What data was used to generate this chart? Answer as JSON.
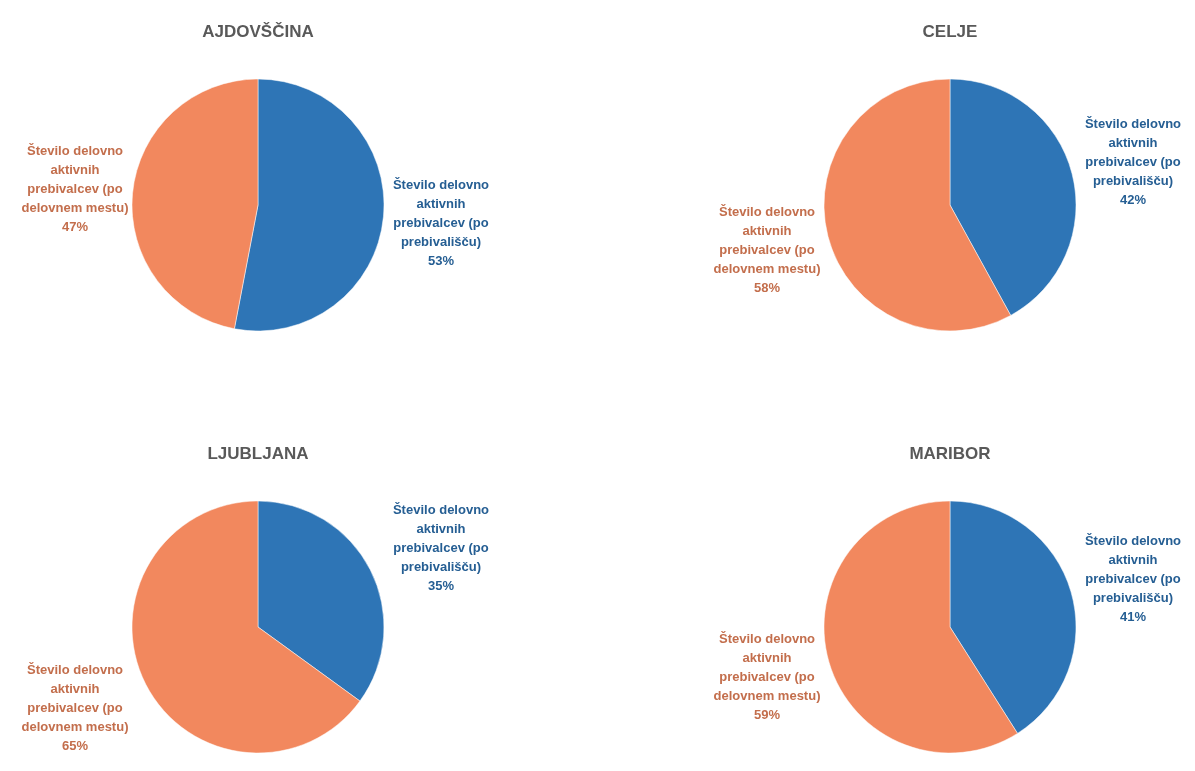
{
  "chart_data": [
    {
      "type": "pie",
      "title": "AJDOVŠČINA",
      "categories": [
        "Število delovno aktivnih prebivalcev (po prebivališču)",
        "Število delovno aktivnih prebivalcev (po delovnem mestu)"
      ],
      "values": [
        53,
        47
      ],
      "colors": [
        "#2e75b6",
        "#f2885e"
      ],
      "value_labels": [
        "53%",
        "47%"
      ]
    },
    {
      "type": "pie",
      "title": "CELJE",
      "categories": [
        "Število delovno aktivnih prebivalcev (po prebivališču)",
        "Število delovno aktivnih prebivalcev (po delovnem mestu)"
      ],
      "values": [
        42,
        58
      ],
      "colors": [
        "#2e75b6",
        "#f2885e"
      ],
      "value_labels": [
        "42%",
        "58%"
      ]
    },
    {
      "type": "pie",
      "title": "LJUBLJANA",
      "categories": [
        "Število delovno aktivnih prebivalcev (po prebivališču)",
        "Število delovno aktivnih prebivalcev (po delovnem mestu)"
      ],
      "values": [
        35,
        65
      ],
      "colors": [
        "#2e75b6",
        "#f2885e"
      ],
      "value_labels": [
        "35%",
        "65%"
      ]
    },
    {
      "type": "pie",
      "title": "MARIBOR",
      "categories": [
        "Število delovno aktivnih prebivalcev (po prebivališču)",
        "Število delovno aktivnih prebivalcev (po delovnem mestu)"
      ],
      "values": [
        41,
        59
      ],
      "colors": [
        "#2e75b6",
        "#f2885e"
      ],
      "value_labels": [
        "41%",
        "59%"
      ]
    }
  ]
}
